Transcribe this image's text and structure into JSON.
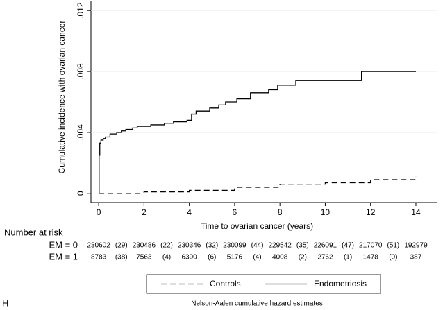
{
  "chart_data": {
    "type": "line",
    "step": "post",
    "panel_label": "H",
    "xlabel": "Time to ovarian cancer (years)",
    "ylabel": "Cumulative incidence with ovarian cancer",
    "note": "Nelson-Aalen cumulative hazard estimates",
    "xlim": [
      -0.34,
      14.92
    ],
    "ylim": [
      -0.0006,
      0.0126
    ],
    "xticks": [
      0,
      2,
      4,
      6,
      8,
      10,
      12,
      14
    ],
    "yticks": [
      0,
      {
        "value": 0.004,
        "label": ".004"
      },
      {
        "value": 0.008,
        "label": ".008"
      },
      {
        "value": 0.012,
        "label": ".012"
      }
    ],
    "grid": true,
    "legend": "bottom",
    "series": [
      {
        "name": "Controls",
        "color": "#000000",
        "dash": "8,5",
        "x": [
          0,
          2,
          4,
          6,
          8,
          10,
          12,
          14
        ],
        "values": [
          0,
          0.0001,
          0.0002,
          0.0004,
          0.0006,
          0.0007,
          0.0009,
          0.0011
        ]
      },
      {
        "name": "Endometriosis",
        "color": "#000000",
        "dash": "none",
        "x": [
          0,
          0.02,
          0.05,
          0.1,
          0.2,
          0.3,
          0.5,
          0.8,
          1.0,
          1.2,
          1.5,
          1.7,
          2.3,
          2.9,
          3.3,
          3.9,
          4.1,
          4.3,
          4.9,
          5.3,
          5.6,
          6.1,
          6.7,
          7.5,
          7.9,
          8.7,
          11.6,
          14
        ],
        "values": [
          0,
          0.0025,
          0.0033,
          0.0035,
          0.0036,
          0.0037,
          0.0039,
          0.004,
          0.0041,
          0.0042,
          0.0043,
          0.0044,
          0.0045,
          0.0046,
          0.0047,
          0.0048,
          0.0052,
          0.0054,
          0.0056,
          0.0058,
          0.006,
          0.0062,
          0.0066,
          0.0068,
          0.0071,
          0.0074,
          0.008,
          0.008
        ]
      }
    ],
    "risk_table": {
      "title": "Number at risk",
      "rows": [
        {
          "label": "EM = 0",
          "at_risk": [
            "230602",
            "230486",
            "230346",
            "230099",
            "229542",
            "226091",
            "217070",
            "192979"
          ],
          "events": [
            "(29)",
            "(22)",
            "(32)",
            "(44)",
            "(35)",
            "(47)",
            "(51)"
          ]
        },
        {
          "label": "EM = 1",
          "at_risk": [
            "8783",
            "7563",
            "6390",
            "5176",
            "4008",
            "2762",
            "1478",
            "387"
          ],
          "events": [
            "(38)",
            "(4)",
            "(6)",
            "(4)",
            "(2)",
            "(1)",
            "(0)"
          ]
        }
      ]
    }
  }
}
